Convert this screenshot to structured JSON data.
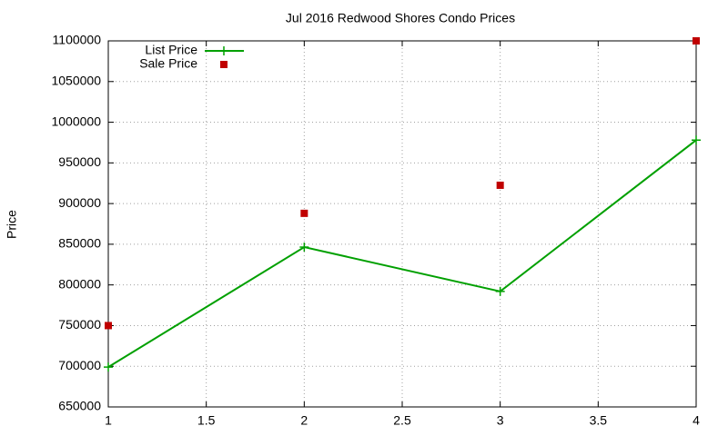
{
  "chart_data": {
    "type": "line",
    "title": "Jul 2016 Redwood Shores Condo Prices",
    "y_label": "Price",
    "x": [
      1,
      2,
      3,
      4
    ],
    "series": [
      {
        "name": "List Price",
        "color": "#00a000",
        "style": "linespoints",
        "marker": "plus",
        "values": [
          699000,
          846500,
          792000,
          978000
        ]
      },
      {
        "name": "Sale Price",
        "color": "#c00000",
        "style": "points",
        "marker": "square",
        "values": [
          750000,
          888000,
          922500,
          1100000
        ]
      }
    ],
    "xlim": [
      1,
      4
    ],
    "xticks": [
      1,
      1.5,
      2,
      2.5,
      3,
      3.5,
      4
    ],
    "ylim": [
      650000,
      1100000
    ],
    "yticks": [
      650000,
      700000,
      750000,
      800000,
      850000,
      900000,
      950000,
      1000000,
      1050000,
      1100000
    ],
    "grid": true,
    "legend": "top-left"
  }
}
